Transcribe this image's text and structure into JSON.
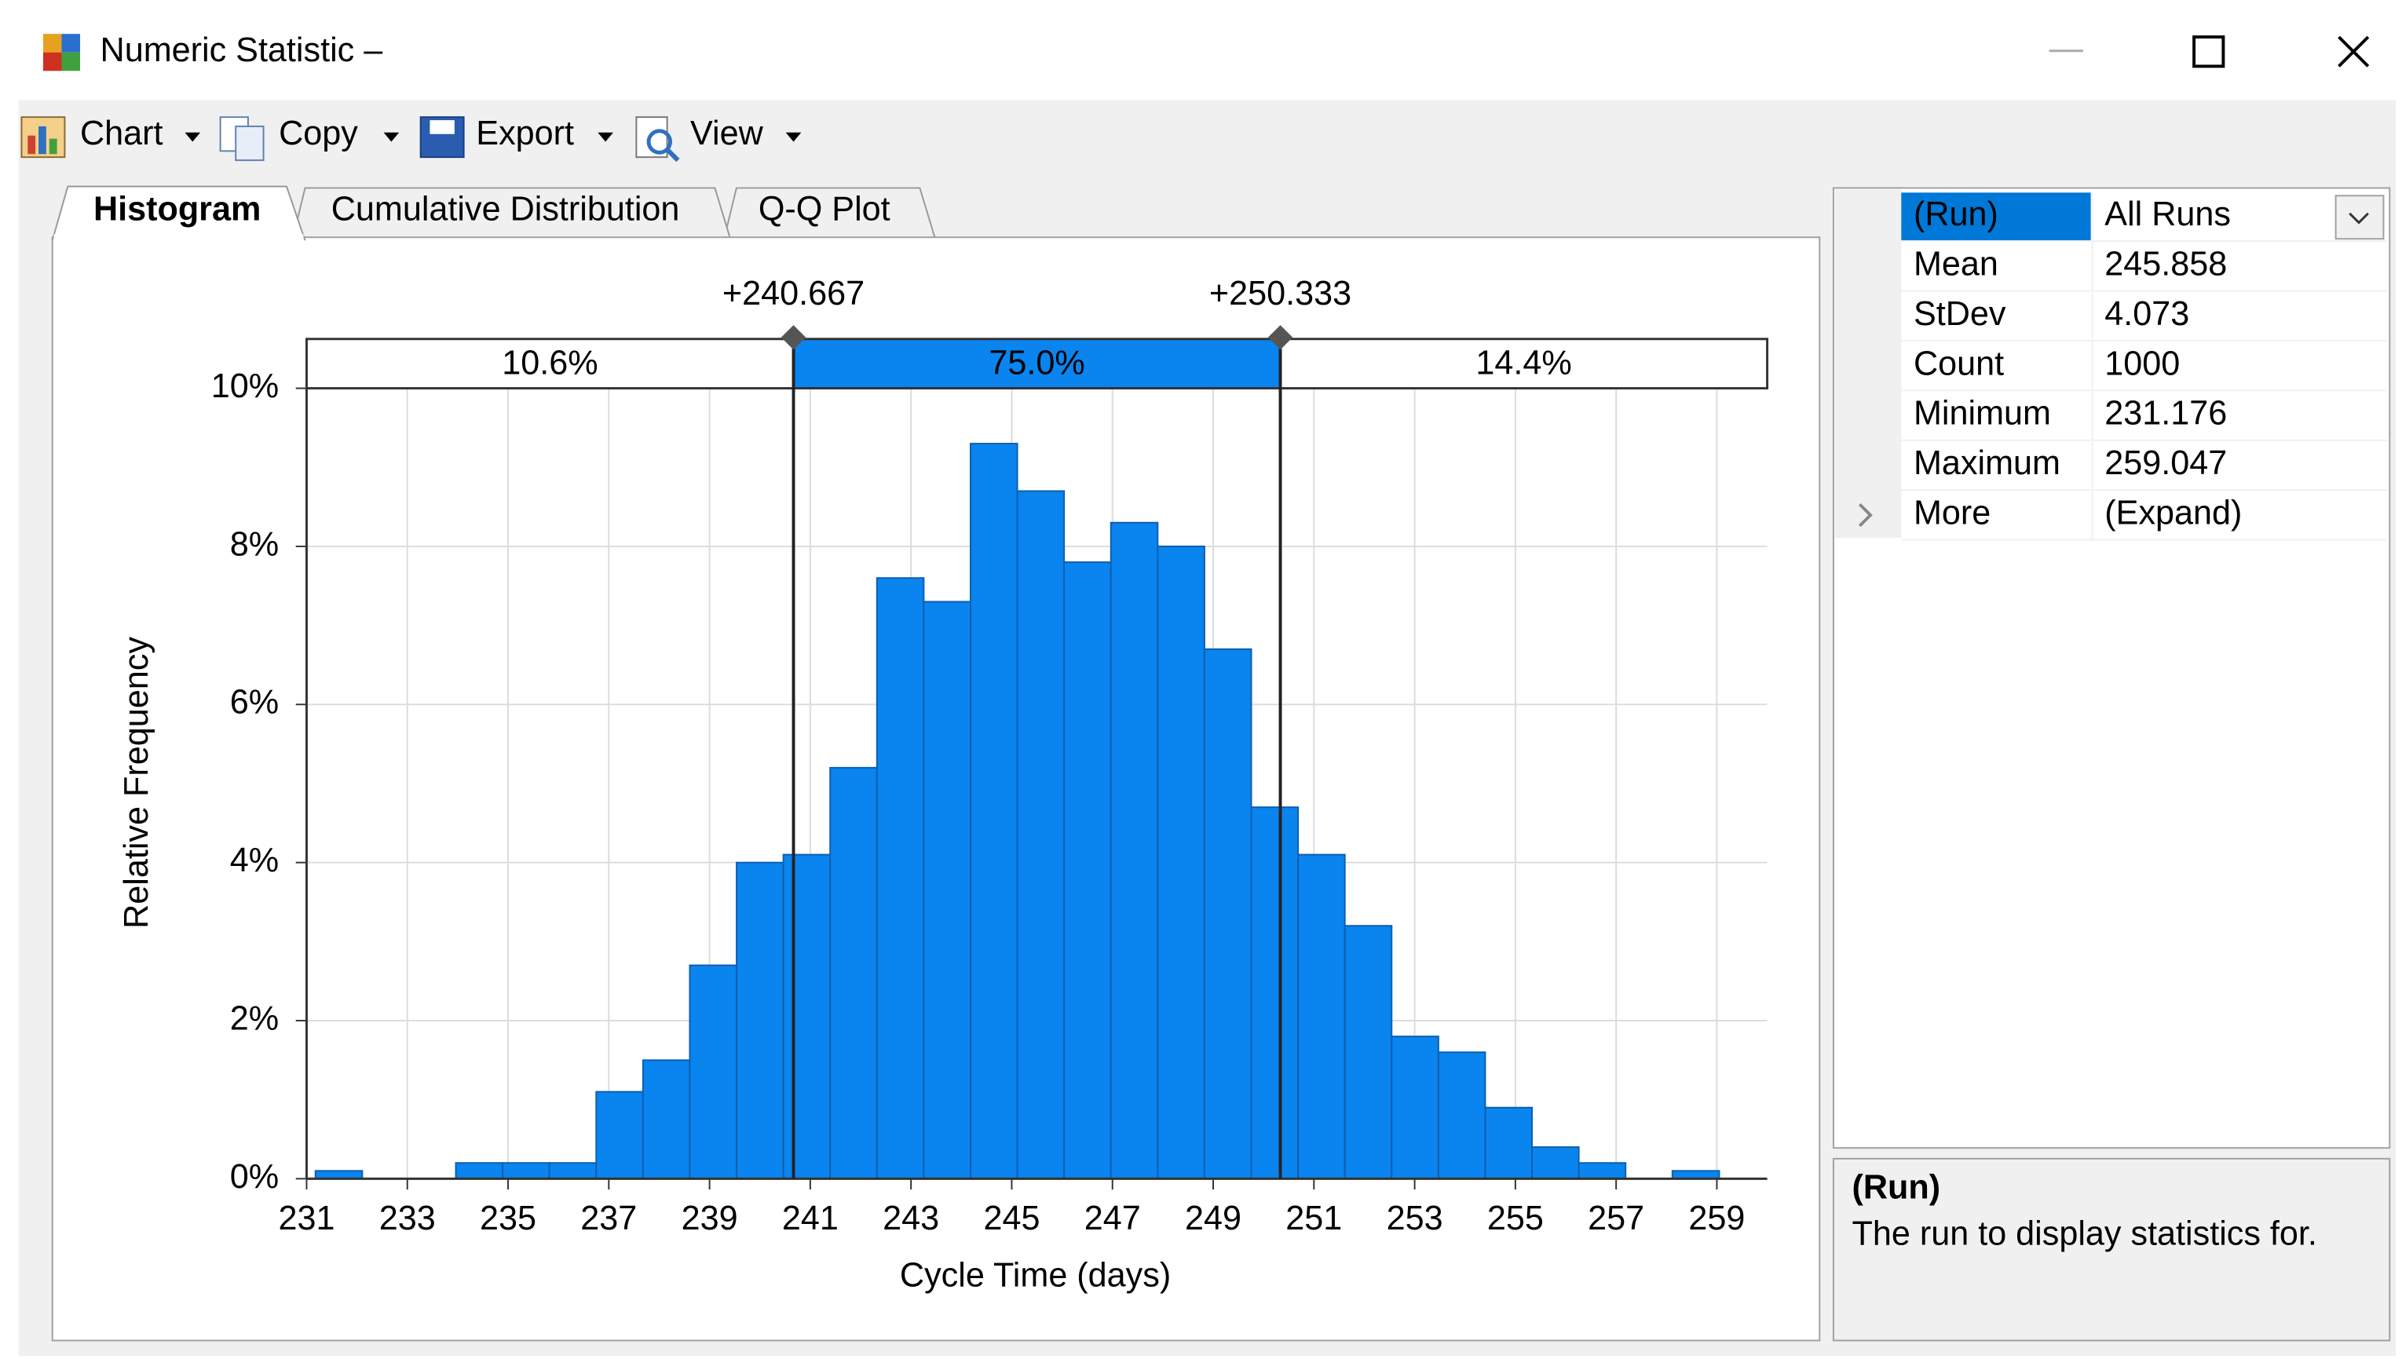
{
  "window": {
    "title": "Numeric Statistic –"
  },
  "toolbar": [
    "Chart",
    "Copy",
    "Export",
    "View"
  ],
  "tabs": [
    "Histogram",
    "Cumulative Distribution",
    "Q-Q Plot"
  ],
  "chart_data": {
    "type": "histogram",
    "xlabel": "Cycle Time (days)",
    "ylabel": "Relative Frequency",
    "bins": [
      231.176,
      232.105,
      233.034,
      233.963,
      234.892,
      235.821,
      236.75,
      237.679,
      238.608,
      239.537,
      240.466,
      241.395,
      242.324,
      243.253,
      244.182,
      245.111,
      246.04,
      246.969,
      247.898,
      248.827,
      249.756,
      250.685,
      251.614,
      252.543,
      253.472,
      254.401,
      255.33,
      256.259,
      257.188,
      258.117,
      259.047
    ],
    "values": [
      0.1,
      0,
      0,
      0.2,
      0.2,
      0.2,
      1.1,
      1.5,
      2.7,
      4.0,
      4.1,
      5.2,
      7.6,
      7.3,
      9.3,
      8.7,
      7.8,
      8.3,
      8.0,
      6.7,
      4.7,
      4.1,
      3.2,
      1.8,
      1.6,
      0.9,
      0.4,
      0.2,
      0,
      0.1
    ],
    "color": "#0a84ee",
    "xlim": [
      231,
      260
    ],
    "xticks": [
      231,
      233,
      235,
      237,
      239,
      241,
      243,
      245,
      247,
      249,
      251,
      253,
      255,
      257,
      259
    ],
    "ylim": [
      0,
      10
    ],
    "yticks": [
      {
        "value": 0,
        "label": "0%"
      },
      {
        "value": 2,
        "label": "2%"
      },
      {
        "value": 4,
        "label": "4%"
      },
      {
        "value": 6,
        "label": "6%"
      },
      {
        "value": 8,
        "label": "8%"
      },
      {
        "value": 10,
        "label": "10%"
      }
    ],
    "grid": true,
    "percentile_markers": [
      {
        "value": 240.667,
        "label": "+240.667"
      },
      {
        "value": 250.333,
        "label": "+250.333"
      }
    ],
    "segments": [
      {
        "value": 10.6,
        "label": "10.6%"
      },
      {
        "value": 75.0,
        "label": "75.0%"
      },
      {
        "value": 14.4,
        "label": "14.4%"
      }
    ]
  },
  "properties": {
    "rows": [
      [
        "(Run)",
        "All Runs"
      ],
      [
        "Mean",
        "245.858"
      ],
      [
        "StDev",
        "4.073"
      ],
      [
        "Count",
        "1000"
      ],
      [
        "Minimum",
        "231.176"
      ],
      [
        "Maximum",
        "259.047"
      ],
      [
        "More",
        "(Expand)"
      ]
    ]
  },
  "description": {
    "title": "(Run)",
    "text": "The run to display statistics for."
  }
}
